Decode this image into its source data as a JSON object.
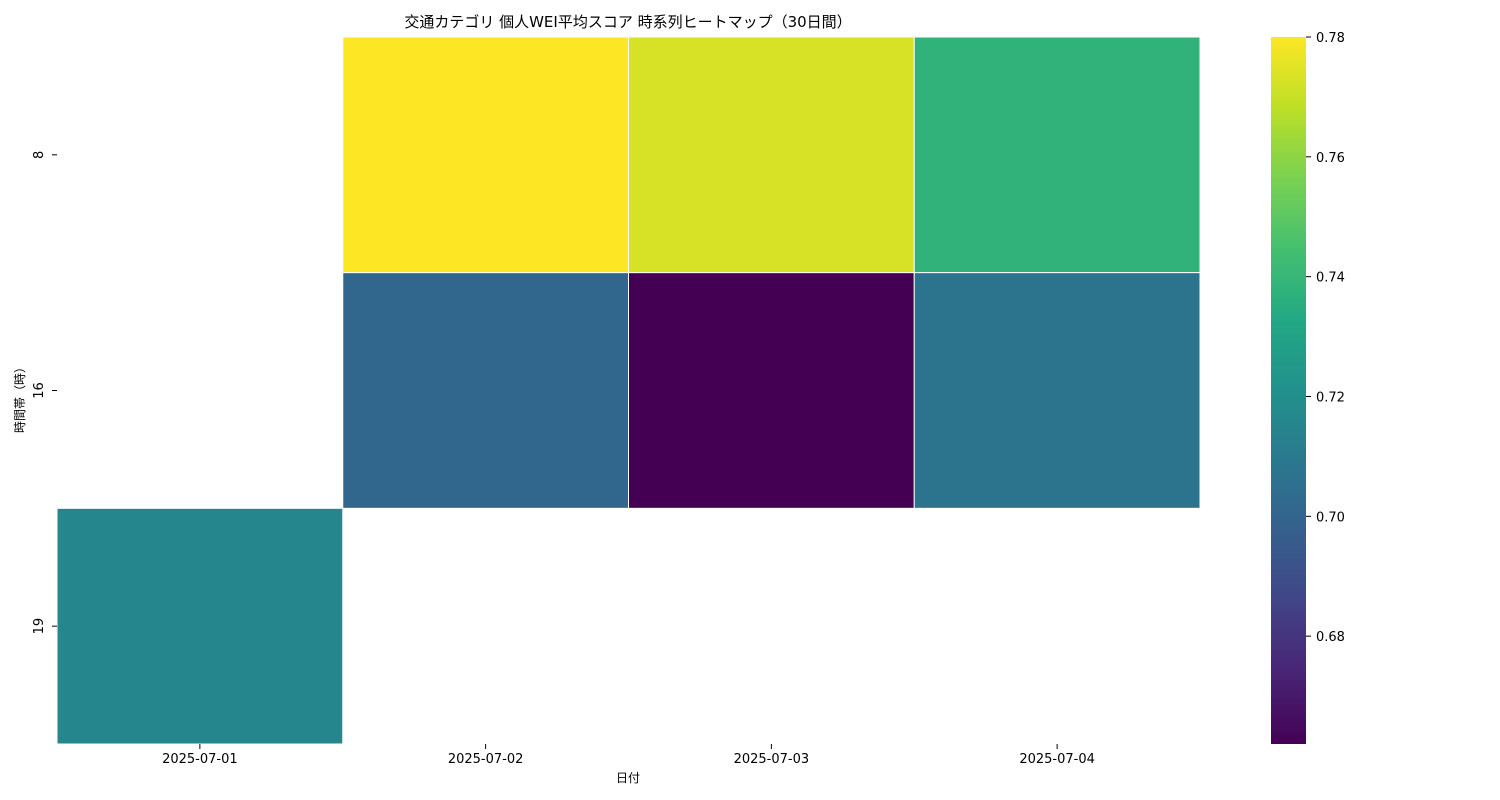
{
  "chart_data": {
    "type": "heatmap",
    "title": "交通カテゴリ 個人WEI平均スコア 時系列ヒートマップ（30日間）",
    "xlabel": "日付",
    "ylabel": "時間帯（時）",
    "x": [
      "2025-07-01",
      "2025-07-02",
      "2025-07-03",
      "2025-07-04"
    ],
    "y": [
      "8",
      "16",
      "19"
    ],
    "values": [
      [
        null,
        0.78,
        0.773,
        0.738
      ],
      [
        null,
        0.701,
        0.662,
        0.707
      ],
      [
        0.716,
        null,
        null,
        null
      ]
    ],
    "colormap": "viridis",
    "color_range": [
      0.662,
      0.78
    ],
    "colorbar_ticks": [
      "0.68",
      "0.70",
      "0.72",
      "0.74",
      "0.76",
      "0.78"
    ],
    "grid": false,
    "cell_border_color": "#ffffff"
  }
}
